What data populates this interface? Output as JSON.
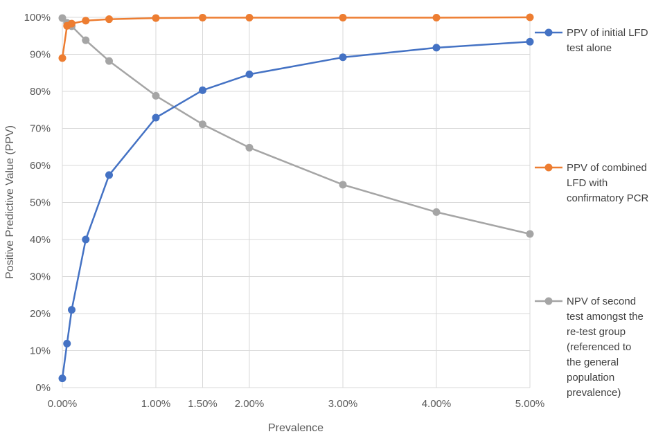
{
  "chart_data": {
    "type": "line",
    "title": "",
    "xlabel": "Prevalence",
    "ylabel": "Positive Predictive Value (PPV)",
    "x": [
      0.0,
      0.05,
      0.1,
      0.25,
      0.5,
      1.0,
      1.5,
      2.0,
      3.0,
      4.0,
      5.0
    ],
    "xlim": [
      0,
      5
    ],
    "ylim": [
      0,
      100
    ],
    "x_ticks": [
      {
        "value": 0,
        "label": "0.00%"
      },
      {
        "value": 1,
        "label": "1.00%"
      },
      {
        "value": 1.5,
        "label": "1.50%"
      },
      {
        "value": 2,
        "label": "2.00%"
      },
      {
        "value": 3,
        "label": "3.00%"
      },
      {
        "value": 4,
        "label": "4.00%"
      },
      {
        "value": 5,
        "label": "5.00%"
      }
    ],
    "y_ticks": [
      {
        "value": 0,
        "label": "0%"
      },
      {
        "value": 10,
        "label": "10%"
      },
      {
        "value": 20,
        "label": "20%"
      },
      {
        "value": 30,
        "label": "30%"
      },
      {
        "value": 40,
        "label": "40%"
      },
      {
        "value": 50,
        "label": "50%"
      },
      {
        "value": 60,
        "label": "60%"
      },
      {
        "value": 70,
        "label": "70%"
      },
      {
        "value": 80,
        "label": "80%"
      },
      {
        "value": 90,
        "label": "90%"
      },
      {
        "value": 100,
        "label": "100%"
      }
    ],
    "grid": true,
    "legend_position": "right",
    "series": [
      {
        "name": "PPV of initial LFD test alone",
        "legend_lines": [
          "PPV of initial LFD",
          "test alone"
        ],
        "color": "#4472c4",
        "values": [
          2.5,
          11.9,
          21.0,
          40.0,
          57.4,
          72.9,
          80.3,
          84.6,
          89.2,
          91.8,
          93.4
        ]
      },
      {
        "name": "PPV of combined LFD with confirmatory PCR",
        "legend_lines": [
          "PPV of combined",
          "LFD with",
          "confirmatory PCR"
        ],
        "color": "#ed7d31",
        "values": [
          89.0,
          97.7,
          98.3,
          99.1,
          99.5,
          99.8,
          99.9,
          99.9,
          99.9,
          99.9,
          100.0
        ]
      },
      {
        "name": "NPV of second test amongst the re-test group (referenced to the general population prevalence)",
        "legend_lines": [
          "NPV of second",
          "test amongst the",
          "re-test group",
          "(referenced to",
          "the general",
          "population",
          "prevalence)"
        ],
        "color": "#a5a5a5",
        "values": [
          99.8,
          98.5,
          97.6,
          93.8,
          88.2,
          78.8,
          71.1,
          64.8,
          54.8,
          47.4,
          41.5
        ]
      }
    ]
  }
}
